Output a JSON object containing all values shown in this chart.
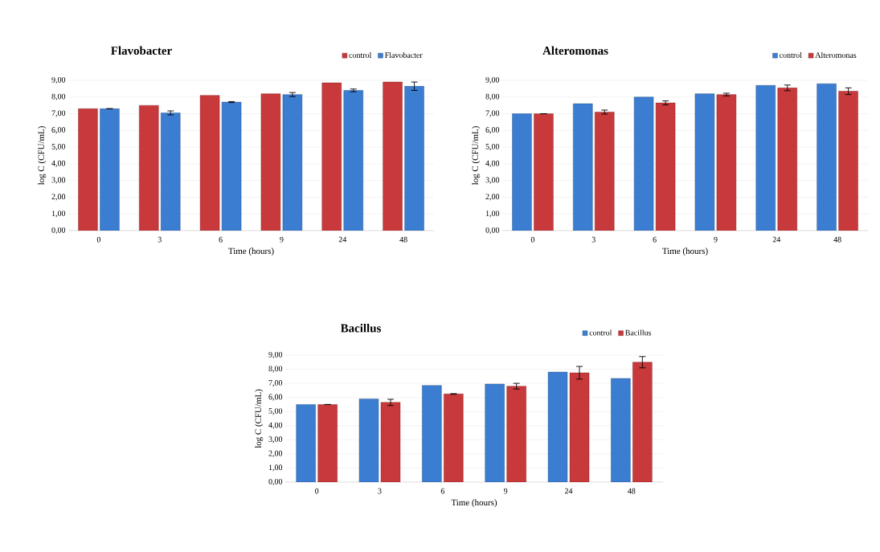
{
  "chart_data": [
    {
      "type": "bar",
      "title": "Flavobacter",
      "xlabel": "Time (hours)",
      "ylabel": "log C (CFU/mL)",
      "categories": [
        "0",
        "3",
        "6",
        "9",
        "24",
        "48"
      ],
      "series": [
        {
          "name": "control",
          "color": "#c8393b",
          "values": [
            7.3,
            7.5,
            8.1,
            8.2,
            8.85,
            8.9
          ]
        },
        {
          "name": "Flavobacter",
          "color": "#3b7dd0",
          "values": [
            7.3,
            7.05,
            7.7,
            8.15,
            8.4,
            8.65
          ],
          "errors": [
            null,
            0.12,
            0.03,
            0.12,
            0.08,
            0.25
          ]
        }
      ],
      "ylim": [
        0,
        9
      ],
      "yticks": [
        {
          "value": 0,
          "label": "0,00"
        },
        {
          "value": 1,
          "label": "1,00"
        },
        {
          "value": 2,
          "label": "2,00"
        },
        {
          "value": 3,
          "label": "3,00"
        },
        {
          "value": 4,
          "label": "4,00"
        },
        {
          "value": 5,
          "label": "5,00"
        },
        {
          "value": 6,
          "label": "6,00"
        },
        {
          "value": 7,
          "label": "7,00"
        },
        {
          "value": 8,
          "label": "8,00"
        },
        {
          "value": 9,
          "label": "9,00"
        }
      ],
      "grid": "y",
      "legend": "top right"
    },
    {
      "type": "bar",
      "title": "Alteromonas",
      "xlabel": "Time (hours)",
      "ylabel": "log C (CFU/mL)",
      "categories": [
        "0",
        "3",
        "6",
        "9",
        "24",
        "48"
      ],
      "series": [
        {
          "name": "control",
          "color": "#3b7dd0",
          "values": [
            7.0,
            7.6,
            8.0,
            8.2,
            8.7,
            8.8
          ]
        },
        {
          "name": "Alteromonas",
          "color": "#c8393b",
          "values": [
            7.0,
            7.1,
            7.65,
            8.15,
            8.55,
            8.35
          ],
          "errors": [
            null,
            0.12,
            0.12,
            0.08,
            0.17,
            0.2
          ]
        }
      ],
      "ylim": [
        0,
        9
      ],
      "yticks": [
        {
          "value": 0,
          "label": "0,00"
        },
        {
          "value": 1,
          "label": "1,00"
        },
        {
          "value": 2,
          "label": "2,00"
        },
        {
          "value": 3,
          "label": "3,00"
        },
        {
          "value": 4,
          "label": "4,00"
        },
        {
          "value": 5,
          "label": "5,00"
        },
        {
          "value": 6,
          "label": "6,00"
        },
        {
          "value": 7,
          "label": "7,00"
        },
        {
          "value": 8,
          "label": "8,00"
        },
        {
          "value": 9,
          "label": "9,00"
        }
      ],
      "grid": "y",
      "legend": "top right"
    },
    {
      "type": "bar",
      "title": "Bacillus",
      "xlabel": "Time (hours)",
      "ylabel": "log C (CFU/mL)",
      "categories": [
        "0",
        "3",
        "6",
        "9",
        "24",
        "48"
      ],
      "series": [
        {
          "name": "control",
          "color": "#3b7dd0",
          "values": [
            5.5,
            5.9,
            6.85,
            6.95,
            7.8,
            7.35
          ]
        },
        {
          "name": "Bacillus",
          "color": "#c8393b",
          "values": [
            5.5,
            5.65,
            6.25,
            6.8,
            7.75,
            8.5
          ],
          "errors": [
            null,
            0.22,
            0.02,
            0.2,
            0.45,
            0.4
          ]
        }
      ],
      "ylim": [
        0,
        9
      ],
      "yticks": [
        {
          "value": 0,
          "label": "0,00"
        },
        {
          "value": 1,
          "label": "1,00"
        },
        {
          "value": 2,
          "label": "2,00"
        },
        {
          "value": 3,
          "label": "3,00"
        },
        {
          "value": 4,
          "label": "4,00"
        },
        {
          "value": 5,
          "label": "5,00"
        },
        {
          "value": 6,
          "label": "6,00"
        },
        {
          "value": 7,
          "label": "7,00"
        },
        {
          "value": 8,
          "label": "8,00"
        },
        {
          "value": 9,
          "label": "9,00"
        }
      ],
      "grid": "y",
      "legend": "top right"
    }
  ]
}
